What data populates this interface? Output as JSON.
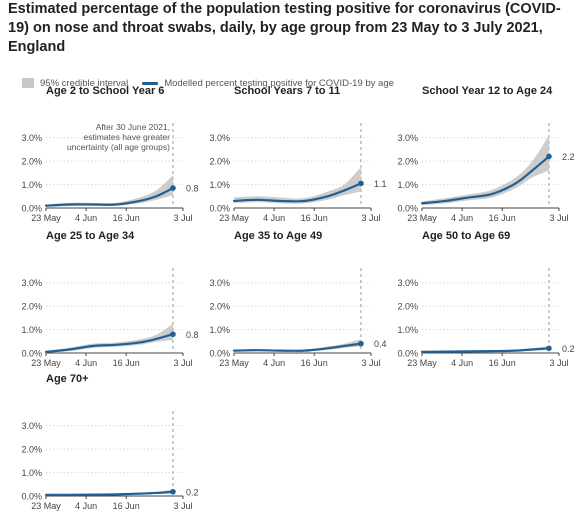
{
  "title": "Estimated percentage of the population testing positive for coronavirus (COVID-19) on nose and throat swabs, daily, by age group from 23 May to 3 July 2021, England",
  "legend": {
    "interval_label": "95% credible interval",
    "line_label": "Modelled percent testing positive for COVID-19 by age"
  },
  "colors": {
    "line": "#206095",
    "band": "#c8c8c8",
    "grid": "#d9d9d9",
    "axis": "#444444"
  },
  "chart_data": {
    "type": "line",
    "x_tick_labels": [
      "23 May",
      "4 Jun",
      "16 Jun",
      "3 Jul"
    ],
    "y_tick_labels": [
      "0.0%",
      "1.0%",
      "2.0%",
      "3.0%"
    ],
    "ylim": [
      0,
      3.2
    ],
    "xlim": [
      "2021-05-23",
      "2021-07-03"
    ],
    "annotation": "After 30 June 2021, estimates have greater uncertainty (all age groups)",
    "annotation_date": "2021-06-30",
    "panels": [
      {
        "title": "Age 2 to School Year 6",
        "end_label": "0.8",
        "x": [
          "2021-05-23",
          "2021-05-30",
          "2021-06-06",
          "2021-06-13",
          "2021-06-20",
          "2021-06-25",
          "2021-06-30"
        ],
        "y": [
          0.1,
          0.15,
          0.15,
          0.15,
          0.3,
          0.5,
          0.85
        ],
        "lower": [
          0.05,
          0.08,
          0.1,
          0.1,
          0.2,
          0.35,
          0.55
        ],
        "upper": [
          0.15,
          0.22,
          0.22,
          0.22,
          0.45,
          0.75,
          1.4
        ]
      },
      {
        "title": "School Years 7 to 11",
        "end_label": "1.1",
        "x": [
          "2021-05-23",
          "2021-05-30",
          "2021-06-06",
          "2021-06-13",
          "2021-06-20",
          "2021-06-25",
          "2021-06-30"
        ],
        "y": [
          0.3,
          0.35,
          0.3,
          0.3,
          0.5,
          0.75,
          1.05
        ],
        "lower": [
          0.2,
          0.25,
          0.2,
          0.2,
          0.35,
          0.55,
          0.7
        ],
        "upper": [
          0.45,
          0.5,
          0.45,
          0.42,
          0.7,
          1.0,
          1.75
        ]
      },
      {
        "title": "School Year 12 to Age 24",
        "end_label": "2.2",
        "x": [
          "2021-05-23",
          "2021-05-30",
          "2021-06-06",
          "2021-06-13",
          "2021-06-20",
          "2021-06-25",
          "2021-06-30"
        ],
        "y": [
          0.2,
          0.3,
          0.45,
          0.6,
          1.05,
          1.6,
          2.2
        ],
        "lower": [
          0.12,
          0.2,
          0.33,
          0.45,
          0.85,
          1.3,
          1.6
        ],
        "upper": [
          0.28,
          0.42,
          0.58,
          0.78,
          1.3,
          2.0,
          3.1
        ]
      },
      {
        "title": "Age 25 to Age 34",
        "end_label": "0.8",
        "x": [
          "2021-05-23",
          "2021-05-30",
          "2021-06-06",
          "2021-06-13",
          "2021-06-20",
          "2021-06-25",
          "2021-06-30"
        ],
        "y": [
          0.05,
          0.15,
          0.3,
          0.35,
          0.45,
          0.6,
          0.8
        ],
        "lower": [
          0.02,
          0.08,
          0.22,
          0.27,
          0.35,
          0.48,
          0.55
        ],
        "upper": [
          0.1,
          0.22,
          0.4,
          0.45,
          0.58,
          0.78,
          1.25
        ]
      },
      {
        "title": "Age 35 to Age 49",
        "end_label": "0.4",
        "x": [
          "2021-05-23",
          "2021-05-30",
          "2021-06-06",
          "2021-06-13",
          "2021-06-20",
          "2021-06-25",
          "2021-06-30"
        ],
        "y": [
          0.1,
          0.12,
          0.1,
          0.1,
          0.2,
          0.3,
          0.4
        ],
        "lower": [
          0.06,
          0.08,
          0.07,
          0.07,
          0.14,
          0.22,
          0.28
        ],
        "upper": [
          0.15,
          0.17,
          0.14,
          0.14,
          0.27,
          0.4,
          0.58
        ]
      },
      {
        "title": "Age 50 to Age 69",
        "end_label": "0.2",
        "x": [
          "2021-05-23",
          "2021-05-30",
          "2021-06-06",
          "2021-06-13",
          "2021-06-20",
          "2021-06-25",
          "2021-06-30"
        ],
        "y": [
          0.05,
          0.06,
          0.07,
          0.08,
          0.1,
          0.15,
          0.2
        ],
        "lower": [
          0.03,
          0.04,
          0.05,
          0.06,
          0.07,
          0.1,
          0.13
        ],
        "upper": [
          0.08,
          0.09,
          0.1,
          0.11,
          0.14,
          0.2,
          0.3
        ]
      },
      {
        "title": "Age 70+",
        "end_label": "0.2",
        "x": [
          "2021-05-23",
          "2021-05-30",
          "2021-06-06",
          "2021-06-13",
          "2021-06-20",
          "2021-06-25",
          "2021-06-30"
        ],
        "y": [
          0.05,
          0.05,
          0.06,
          0.07,
          0.1,
          0.13,
          0.18
        ],
        "lower": [
          0.03,
          0.03,
          0.04,
          0.05,
          0.07,
          0.09,
          0.11
        ],
        "upper": [
          0.08,
          0.08,
          0.09,
          0.1,
          0.13,
          0.18,
          0.28
        ]
      }
    ]
  }
}
